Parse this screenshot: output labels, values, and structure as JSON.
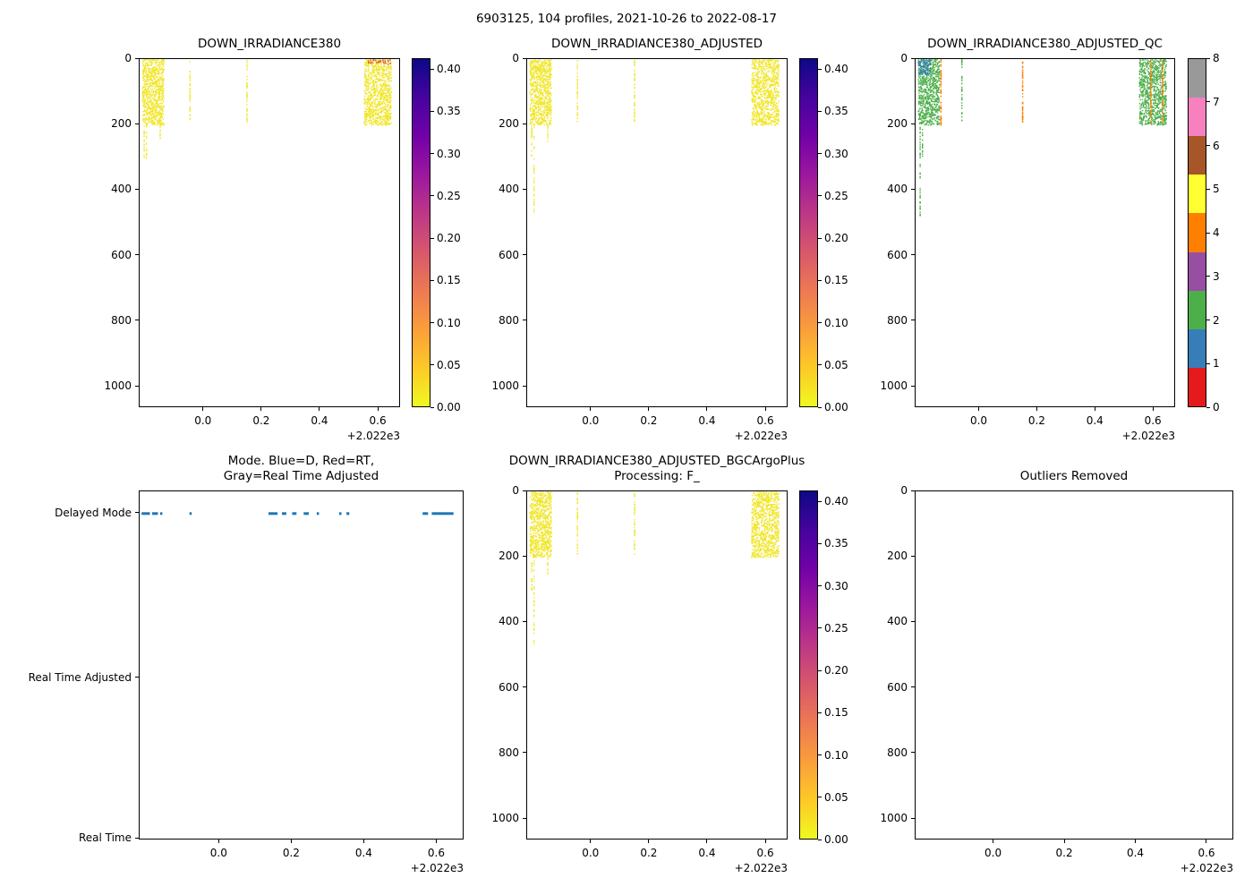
{
  "figure_title": "6903125, 104 profiles, 2021-10-26 to 2022-08-17",
  "palette": {
    "plasma_top_to_bottom": [
      "#0d0887",
      "#46039f",
      "#7201a8",
      "#9c179e",
      "#bd3786",
      "#d8576b",
      "#ed7953",
      "#fa9e3b",
      "#fdc926",
      "#f0f921"
    ],
    "qc_colors_0_to_8": [
      "#e41a1c",
      "#377eb8",
      "#4daf4a",
      "#984ea3",
      "#ff7f00",
      "#ffff33",
      "#a65628",
      "#f781bf",
      "#999999"
    ],
    "point_yellow": "#f0e628",
    "point_red": "#e05c45",
    "qc_green": "#4daf4a",
    "qc_blue": "#377eb8",
    "qc_orange": "#ff7f00",
    "mode_blue": "#1f77b4"
  },
  "axes_common": {
    "xlim": [
      -0.2205,
      0.6705
    ],
    "xticks": [
      0.0,
      0.2,
      0.4,
      0.6
    ],
    "xtick_labels": [
      "0.0",
      "0.2",
      "0.4",
      "0.6"
    ],
    "x_offset_label": "+2.022e3",
    "ylim": [
      0,
      1060
    ],
    "yticks": [
      0,
      200,
      400,
      600,
      800,
      1000
    ],
    "ytick_labels": [
      "0",
      "200",
      "400",
      "600",
      "800",
      "1000"
    ]
  },
  "colorbar_irr": {
    "vmin": 0.0,
    "vmax": 0.413,
    "ticks": [
      0.0,
      0.05,
      0.1,
      0.15,
      0.2,
      0.25,
      0.3,
      0.35,
      0.4
    ],
    "tick_labels": [
      "0.00",
      "0.05",
      "0.10",
      "0.15",
      "0.20",
      "0.25",
      "0.30",
      "0.35",
      "0.40"
    ]
  },
  "colorbar_qc": {
    "tick_labels": [
      "0",
      "1",
      "2",
      "3",
      "4",
      "5",
      "6",
      "7",
      "8"
    ]
  },
  "chart_data": [
    {
      "id": "down_irradiance380",
      "type": "scatter",
      "title_lines": [
        "DOWN_IRRADIANCE380"
      ],
      "colormap": "plasma_r",
      "colorbar": "irr",
      "clusters": [
        {
          "type": "block",
          "x": [
            -0.213,
            -0.139
          ],
          "y": [
            0,
            200
          ],
          "cols": 14,
          "pts": 58,
          "color": "point_yellow"
        },
        {
          "type": "col",
          "x": -0.207,
          "y": [
            200,
            300
          ],
          "pts": 22,
          "color": "point_yellow"
        },
        {
          "type": "col",
          "x": -0.199,
          "y": [
            200,
            305
          ],
          "pts": 16,
          "color": "point_yellow"
        },
        {
          "type": "col",
          "x": -0.152,
          "y": [
            200,
            252
          ],
          "pts": 10,
          "color": "point_yellow"
        },
        {
          "type": "col",
          "x": -0.05,
          "y": [
            0,
            190
          ],
          "pts": 42,
          "color": "point_yellow"
        },
        {
          "type": "col",
          "x": 0.146,
          "y": [
            0,
            190
          ],
          "pts": 42,
          "color": "point_yellow"
        },
        {
          "type": "block",
          "x": [
            0.548,
            0.642
          ],
          "y": [
            0,
            200
          ],
          "cols": 16,
          "pts": 58,
          "color": "point_yellow"
        },
        {
          "type": "block",
          "x": [
            0.56,
            0.642
          ],
          "y": [
            0,
            14
          ],
          "cols": 10,
          "pts": 4,
          "color": "point_red"
        }
      ]
    },
    {
      "id": "down_irradiance380_adjusted",
      "type": "scatter",
      "title_lines": [
        "DOWN_IRRADIANCE380_ADJUSTED"
      ],
      "colormap": "plasma_r",
      "colorbar": "irr",
      "clusters": [
        {
          "type": "block",
          "x": [
            -0.213,
            -0.139
          ],
          "y": [
            0,
            200
          ],
          "cols": 14,
          "pts": 58,
          "color": "point_yellow"
        },
        {
          "type": "col",
          "x": -0.207,
          "y": [
            200,
            300
          ],
          "pts": 22,
          "color": "point_yellow"
        },
        {
          "type": "col",
          "x": -0.199,
          "y": [
            200,
            470
          ],
          "pts": 34,
          "color": "point_yellow"
        },
        {
          "type": "col",
          "x": -0.152,
          "y": [
            200,
            252
          ],
          "pts": 10,
          "color": "point_yellow"
        },
        {
          "type": "col",
          "x": -0.05,
          "y": [
            0,
            190
          ],
          "pts": 42,
          "color": "point_yellow"
        },
        {
          "type": "col",
          "x": 0.146,
          "y": [
            0,
            190
          ],
          "pts": 42,
          "color": "point_yellow"
        },
        {
          "type": "block",
          "x": [
            0.548,
            0.642
          ],
          "y": [
            0,
            200
          ],
          "cols": 16,
          "pts": 58,
          "color": "point_yellow"
        }
      ]
    },
    {
      "id": "down_irradiance380_adjusted_qc",
      "type": "scatter",
      "title_lines": [
        "DOWN_IRRADIANCE380_ADJUSTED_QC"
      ],
      "colormap": "qc_discrete_0_to_8",
      "colorbar": "qc",
      "clusters": [
        {
          "type": "block",
          "x": [
            -0.213,
            -0.139
          ],
          "y": [
            0,
            200
          ],
          "cols": 14,
          "pts": 58,
          "color": "qc_green"
        },
        {
          "type": "block",
          "x": [
            -0.213,
            -0.172
          ],
          "y": [
            0,
            45
          ],
          "cols": 8,
          "pts": 12,
          "color": "qc_blue"
        },
        {
          "type": "col",
          "x": -0.207,
          "y": [
            200,
            480
          ],
          "pts": 46,
          "color": "qc_green"
        },
        {
          "type": "col",
          "x": -0.199,
          "y": [
            200,
            300
          ],
          "pts": 18,
          "color": "qc_green"
        },
        {
          "type": "col",
          "x": -0.135,
          "y": [
            0,
            200
          ],
          "pts": 75,
          "color": "qc_orange"
        },
        {
          "type": "col",
          "x": -0.063,
          "y": [
            0,
            190
          ],
          "pts": 40,
          "color": "qc_green"
        },
        {
          "type": "col",
          "x": 0.146,
          "y": [
            0,
            190
          ],
          "pts": 60,
          "color": "qc_orange"
        },
        {
          "type": "block",
          "x": [
            0.548,
            0.642
          ],
          "y": [
            0,
            200
          ],
          "cols": 16,
          "pts": 58,
          "color": "qc_green"
        },
        {
          "type": "col",
          "x": 0.588,
          "y": [
            0,
            196
          ],
          "pts": 60,
          "color": "qc_orange"
        },
        {
          "type": "col",
          "x": 0.628,
          "y": [
            0,
            196
          ],
          "pts": 60,
          "color": "qc_orange"
        }
      ]
    },
    {
      "id": "mode",
      "type": "event",
      "title_lines": [
        "Mode. Blue=D, Red=RT,",
        "Gray=Real Time Adjusted"
      ],
      "categories": [
        {
          "label": "Delayed Mode",
          "yfrac": 0.064
        },
        {
          "label": "Real Time Adjusted",
          "yfrac": 0.538
        },
        {
          "label": "Real Time",
          "yfrac": 1.0
        }
      ],
      "clusters": [
        {
          "type": "hseg",
          "yfrac": 0.064,
          "thickness": 3,
          "color": "mode_blue",
          "segments": [
            [
              -0.215,
              -0.192
            ],
            [
              -0.186,
              -0.17
            ],
            [
              -0.164,
              -0.158
            ],
            [
              -0.083,
              -0.078
            ],
            [
              0.135,
              0.16
            ],
            [
              0.172,
              0.184
            ],
            [
              0.2,
              0.212
            ],
            [
              0.232,
              0.246
            ],
            [
              0.268,
              0.272
            ],
            [
              0.33,
              0.336
            ],
            [
              0.35,
              0.358
            ],
            [
              0.56,
              0.575
            ],
            [
              0.585,
              0.645
            ]
          ]
        }
      ]
    },
    {
      "id": "down_irradiance380_adjusted_bgcargoplus",
      "type": "scatter",
      "title_lines": [
        "DOWN_IRRADIANCE380_ADJUSTED_BGCArgoPlus",
        "Processing: F_"
      ],
      "colormap": "plasma_r",
      "colorbar": "irr",
      "clusters": [
        {
          "type": "block",
          "x": [
            -0.213,
            -0.139
          ],
          "y": [
            0,
            200
          ],
          "cols": 14,
          "pts": 58,
          "color": "point_yellow"
        },
        {
          "type": "col",
          "x": -0.207,
          "y": [
            200,
            300
          ],
          "pts": 22,
          "color": "point_yellow"
        },
        {
          "type": "col",
          "x": -0.199,
          "y": [
            200,
            470
          ],
          "pts": 34,
          "color": "point_yellow"
        },
        {
          "type": "col",
          "x": -0.152,
          "y": [
            200,
            252
          ],
          "pts": 10,
          "color": "point_yellow"
        },
        {
          "type": "col",
          "x": -0.05,
          "y": [
            0,
            190
          ],
          "pts": 42,
          "color": "point_yellow"
        },
        {
          "type": "col",
          "x": 0.146,
          "y": [
            0,
            190
          ],
          "pts": 42,
          "color": "point_yellow"
        },
        {
          "type": "block",
          "x": [
            0.548,
            0.642
          ],
          "y": [
            0,
            200
          ],
          "cols": 16,
          "pts": 58,
          "color": "point_yellow"
        }
      ]
    },
    {
      "id": "outliers_removed",
      "type": "scatter",
      "title_lines": [
        "Outliers Removed"
      ],
      "clusters": []
    }
  ]
}
